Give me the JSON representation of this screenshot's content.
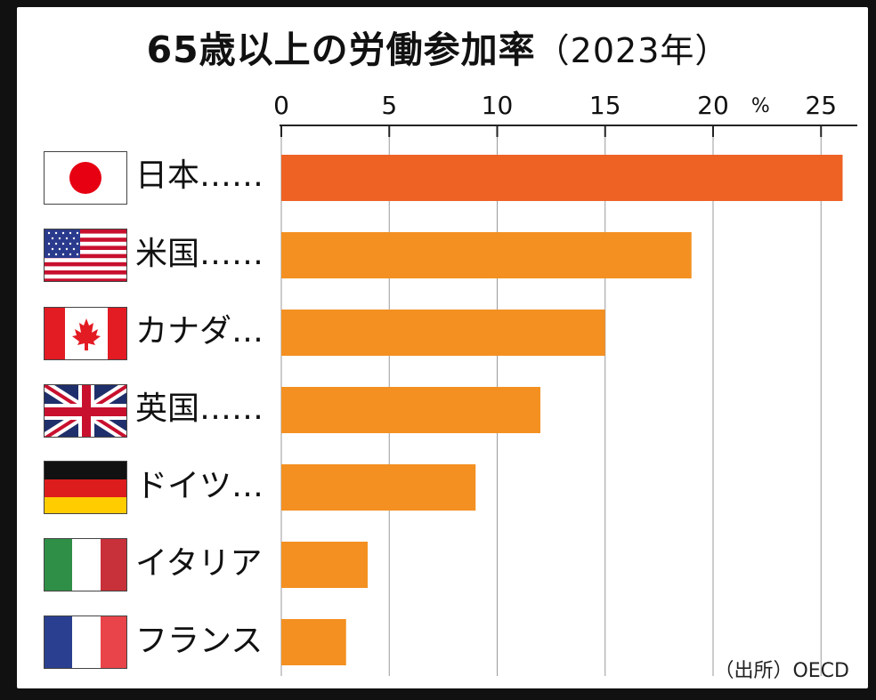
{
  "title": "65歳以上の労働参加率",
  "title_year": "（2023年）",
  "source": "（出所）OECD",
  "chart_data": {
    "type": "bar",
    "orientation": "horizontal",
    "unit": "%",
    "categories": [
      "日本……",
      "米国……",
      "カナダ…",
      "英国……",
      "ドイツ…",
      "イタリア",
      "フランス"
    ],
    "values": [
      26.0,
      19.0,
      15.0,
      12.0,
      9.0,
      4.0,
      3.0
    ],
    "xlim": [
      0,
      26.5
    ],
    "xticks": [
      "0",
      "5",
      "10",
      "15",
      "20",
      "25"
    ],
    "grid": true,
    "colors": {
      "highlight": "#ee6223",
      "bar": "#f39021",
      "grid": "#9a9a9a"
    }
  }
}
